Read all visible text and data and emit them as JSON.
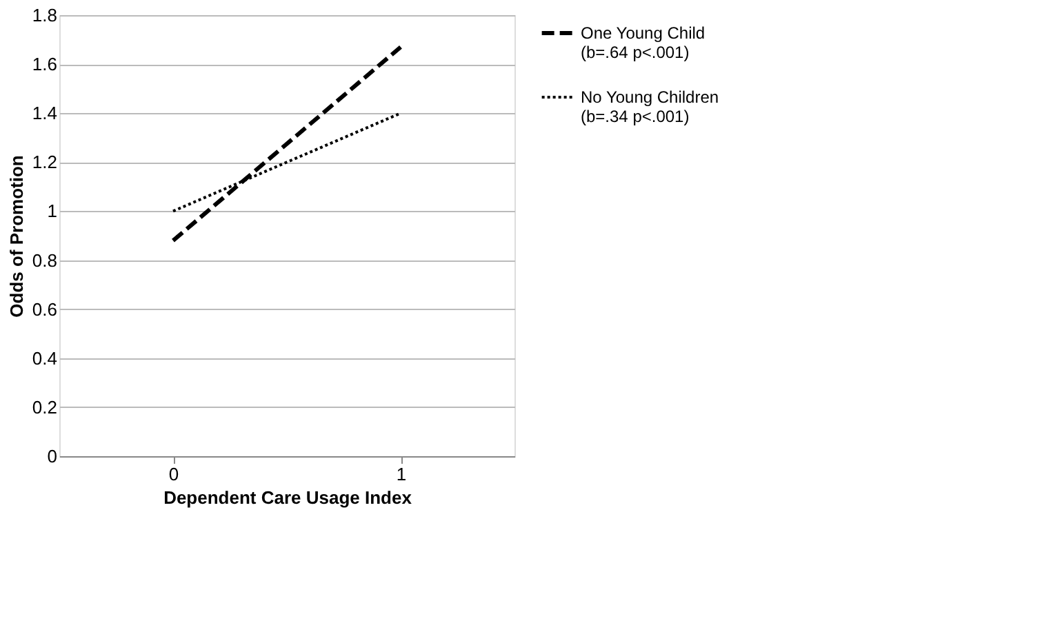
{
  "chart_data": {
    "type": "line",
    "xlabel": "Dependent Care Usage Index",
    "ylabel": "Odds of Promotion",
    "categories": [
      "0",
      "1"
    ],
    "series": [
      {
        "name": "One Young Child (b=.64 p<.001)",
        "color": "#000000",
        "line_style": "dashed",
        "values": [
          0.88,
          1.67
        ]
      },
      {
        "name": "No Young Children (b=.34 p<.001)",
        "color": "#000000",
        "line_style": "dotted",
        "values": [
          1.0,
          1.4
        ]
      }
    ],
    "ylim": [
      0,
      1.8
    ],
    "yticks": [
      0,
      0.2,
      0.4,
      0.6,
      0.8,
      1,
      1.2,
      1.4,
      1.6,
      1.8
    ],
    "grid": "y",
    "legend": "right",
    "marker": "none"
  }
}
